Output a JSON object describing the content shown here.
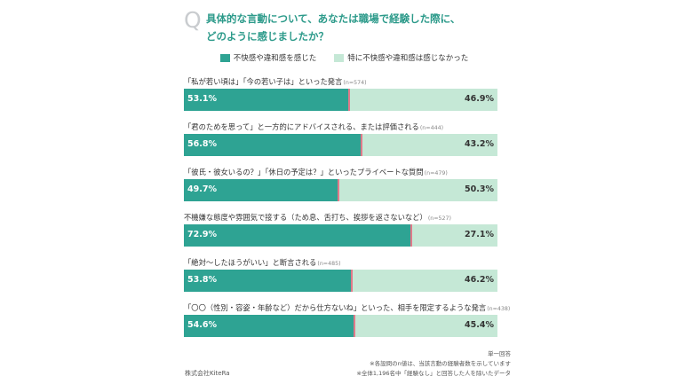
{
  "question": {
    "mark": "Q",
    "line1": "具体的な言動について、あなたは職場で経験した際に、",
    "line2": "どのように感じましたか？"
  },
  "legend": {
    "uncomfortable": "不快感や違和感を感じた",
    "not_uncomfortable": "特に不快感や違和感は感じなかった"
  },
  "colors": {
    "uncomfortable": "#2ea393",
    "not_uncomfortable": "#c5e8d6",
    "divider": "#e07a8a",
    "question_text": "#2c9a8a"
  },
  "chart_data": {
    "type": "bar",
    "orientation": "horizontal",
    "stacked": true,
    "unit": "%",
    "categories": [
      "「私が若い頃は」「今の若い子は」といった発言",
      "「君のためを思って」と一方的にアドバイスされる、または評価される",
      "「彼氏・彼女いるの？」「休日の予定は？」といったプライベートな質問",
      "不機嫌な態度や雰囲気で接する（ため息、舌打ち、挨拶を返さないなど）",
      "「絶対〜したほうがいい」と断言される",
      "「〇〇（性別・容姿・年齢など）だから仕方ないね」といった、相手を限定するような発言"
    ],
    "n": [
      "(n=574)",
      "(n=444)",
      "(n=479)",
      "(n=527)",
      "(n=485)",
      "(n=438)"
    ],
    "series": [
      {
        "name": "不快感や違和感を感じた",
        "values": [
          53.1,
          56.8,
          49.7,
          72.9,
          53.8,
          54.6
        ]
      },
      {
        "name": "特に不快感や違和感は感じなかった",
        "values": [
          46.9,
          43.2,
          50.3,
          27.1,
          46.2,
          45.4
        ]
      }
    ],
    "xlim": [
      0,
      100
    ],
    "grid": false,
    "legend_position": "top"
  },
  "footer": {
    "company": "株式会社KiteRa",
    "note1": "単一回答",
    "note2": "※各設問のn値は、当該言動の経験者数を示しています",
    "note3": "※全体1,196名中「経験なし」と回答した人を除いたデータ"
  }
}
